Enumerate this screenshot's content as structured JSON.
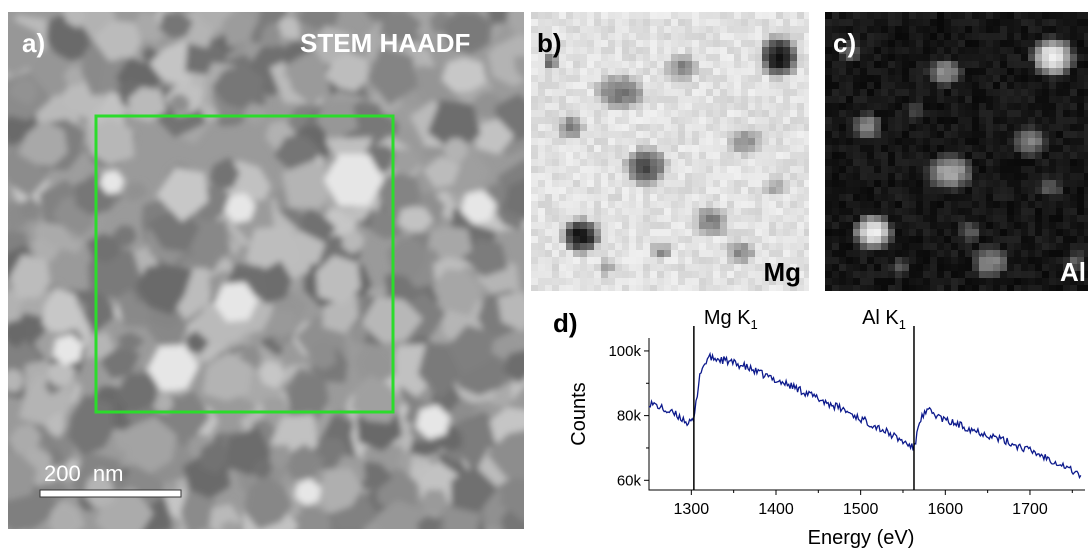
{
  "panels": {
    "a": {
      "letter": "a)",
      "title": "STEM HAADF",
      "scalebar_label": "200  nm"
    },
    "b": {
      "letter": "b)",
      "element": "Mg"
    },
    "c": {
      "letter": "c)",
      "element": "Al"
    },
    "d": {
      "letter": "d)"
    }
  },
  "colors": {
    "roi_box": "#2bdc2b",
    "spectrum_line": "#0d1a8c",
    "edge_marker": "#000000"
  },
  "chart_data": {
    "type": "line",
    "title": "",
    "xlabel": "Energy (eV)",
    "ylabel": "Counts",
    "xlim": [
      1250,
      1765
    ],
    "ylim": [
      57000,
      104000
    ],
    "xticks": [
      1300,
      1400,
      1500,
      1600,
      1700
    ],
    "xtick_labels": [
      "1300",
      "1400",
      "1500",
      "1600",
      "1700"
    ],
    "yticks": [
      60000,
      80000,
      100000
    ],
    "ytick_labels": [
      "60k",
      "80k",
      "100k"
    ],
    "grid": false,
    "legend": "none",
    "edge_markers": [
      {
        "x": 1303,
        "label_main": "Mg K",
        "label_sub": "1"
      },
      {
        "x": 1563,
        "label_main": "Al K",
        "label_sub": "1"
      }
    ],
    "series": [
      {
        "x": [
          1250,
          1260,
          1270,
          1280,
          1290,
          1297,
          1303,
          1310,
          1320,
          1330,
          1340,
          1350,
          1360,
          1380,
          1400,
          1420,
          1440,
          1460,
          1480,
          1500,
          1520,
          1540,
          1550,
          1560,
          1563,
          1570,
          1580,
          1590,
          1600,
          1620,
          1640,
          1660,
          1680,
          1700,
          1720,
          1740,
          1760
        ],
        "y": [
          84000,
          83000,
          81500,
          80500,
          79000,
          77500,
          78500,
          93000,
          98000,
          97500,
          97000,
          96200,
          95500,
          93200,
          91000,
          89000,
          86500,
          84000,
          81800,
          79000,
          76500,
          73500,
          72000,
          70500,
          69500,
          79000,
          81500,
          80000,
          78500,
          76800,
          75000,
          73200,
          71200,
          69200,
          67000,
          64500,
          61500
        ]
      }
    ]
  }
}
